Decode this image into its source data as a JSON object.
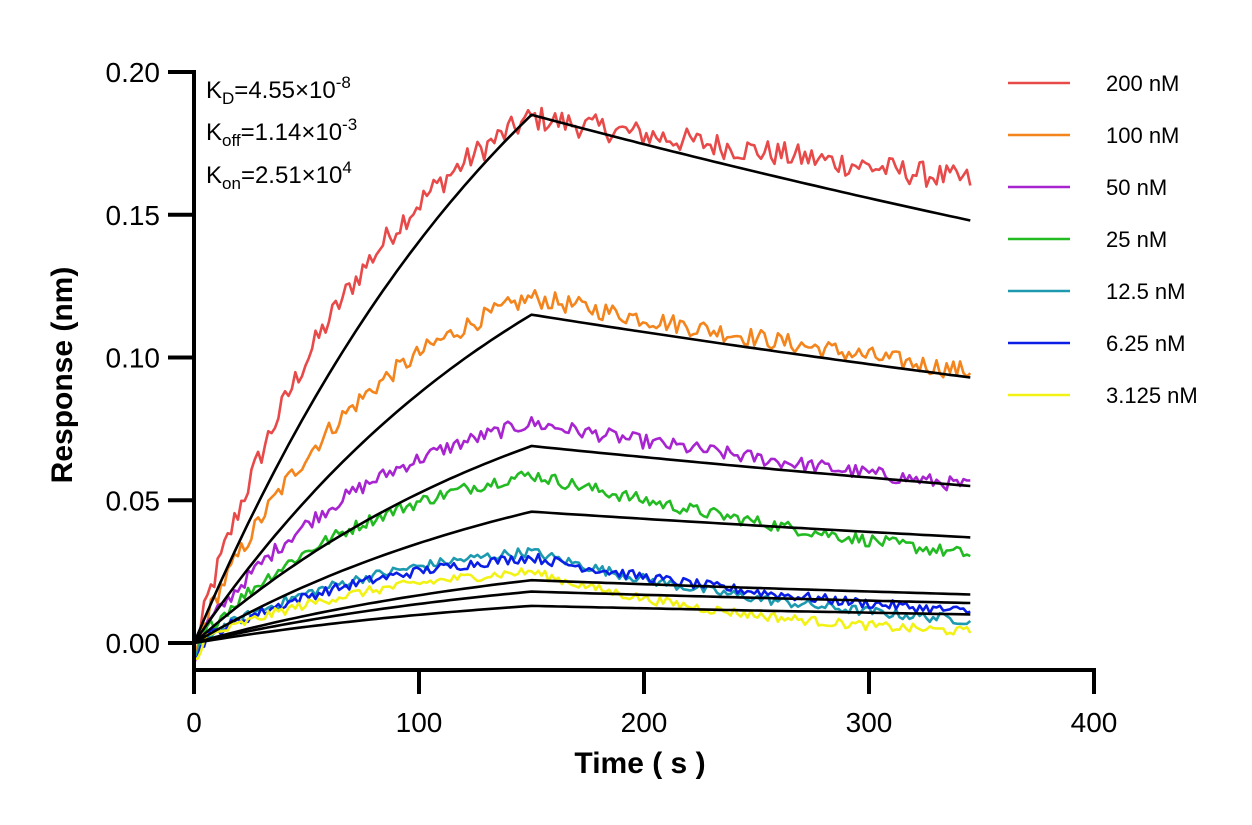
{
  "chart_data": {
    "type": "line",
    "xlabel": "Time ( s )",
    "ylabel": "Response (nm)",
    "xlim": [
      0,
      400
    ],
    "ylim": [
      0,
      0.2
    ],
    "x_ticks": [
      0,
      100,
      200,
      300,
      400
    ],
    "x_tick_labels": [
      "0",
      "100",
      "200",
      "300",
      "400"
    ],
    "y_ticks": [
      0,
      0.05,
      0.1,
      0.15,
      0.2
    ],
    "y_tick_labels": [
      "0.00",
      "0.05",
      "0.10",
      "0.15",
      "0.20"
    ],
    "grid": false,
    "legend_position": "top-right",
    "annotations": {
      "kd": {
        "main": "K",
        "sub": "D",
        "eq": "=4.55×10",
        "exp": "-8"
      },
      "koff": {
        "main": "K",
        "sub": "off",
        "eq": "=1.14×10",
        "exp": "-3"
      },
      "kon": {
        "main": "K",
        "sub": "on",
        "eq": "=2.51×10",
        "exp": "4"
      }
    },
    "association_end_time": 150,
    "end_time": 345,
    "series": [
      {
        "name": "200 nM",
        "color": "#e84a4a",
        "measured_peak": 0.184,
        "measured_end": 0.162,
        "fit_peak": 0.185,
        "fit_end": 0.148
      },
      {
        "name": "100 nM",
        "color": "#f4841c",
        "measured_peak": 0.121,
        "measured_end": 0.095,
        "fit_peak": 0.115,
        "fit_end": 0.093
      },
      {
        "name": "50 nM",
        "color": "#a824d0",
        "measured_peak": 0.077,
        "measured_end": 0.055,
        "fit_peak": 0.069,
        "fit_end": 0.055
      },
      {
        "name": "25 nM",
        "color": "#22bb22",
        "measured_peak": 0.059,
        "measured_end": 0.031,
        "fit_peak": 0.046,
        "fit_end": 0.037
      },
      {
        "name": "12.5 nM",
        "color": "#1e9ab0",
        "measured_peak": 0.032,
        "measured_end": 0.008,
        "fit_peak": 0.022,
        "fit_end": 0.017
      },
      {
        "name": "6.25 nM",
        "color": "#0a1ee6",
        "measured_peak": 0.03,
        "measured_end": 0.011,
        "fit_peak": 0.018,
        "fit_end": 0.014
      },
      {
        "name": "3.125 nM",
        "color": "#f2f215",
        "measured_peak": 0.025,
        "measured_end": 0.004,
        "fit_peak": 0.013,
        "fit_end": 0.01
      }
    ],
    "fit_color": "#000000"
  }
}
